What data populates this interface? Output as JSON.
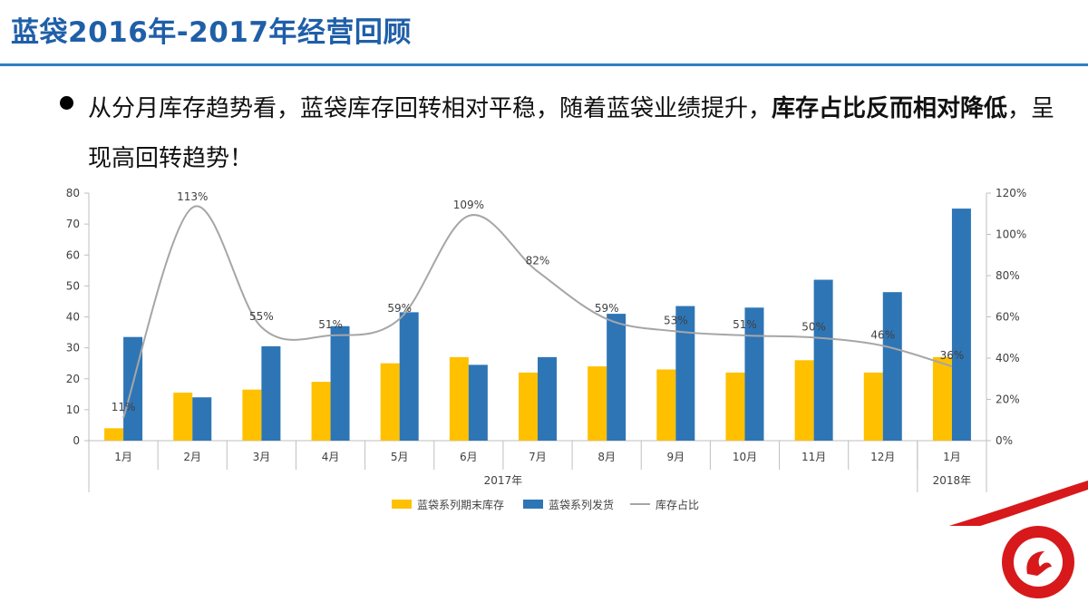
{
  "slide": {
    "title": "蓝袋2016年-2017年经营回顾",
    "bullet_part1": "从分月库存趋势看，蓝袋库存回转相对平稳，随着蓝袋业绩提升，",
    "bullet_bold1": "库存占比反而相对降低",
    "bullet_part2": "，呈现高回转趋势！",
    "title_color": "#1f5fa8",
    "rule_color": "#2f7fc4",
    "brand_red": "#d7191c"
  },
  "chart_data": {
    "type": "bar",
    "categories": [
      "1月",
      "2月",
      "3月",
      "4月",
      "5月",
      "6月",
      "7月",
      "8月",
      "9月",
      "10月",
      "11月",
      "12月",
      "1月"
    ],
    "groups": [
      {
        "label": "2017年",
        "span": 12
      },
      {
        "label": "2018年",
        "span": 1
      }
    ],
    "series": [
      {
        "name": "蓝袋系列期末库存",
        "type": "bar",
        "axis": "left",
        "color": "#ffc000",
        "values": [
          4,
          15.5,
          16.5,
          19,
          25,
          27,
          22,
          24,
          23,
          22,
          26,
          22,
          27
        ]
      },
      {
        "name": "蓝袋系列发货",
        "type": "bar",
        "axis": "left",
        "color": "#2e75b6",
        "values": [
          33.5,
          14,
          30.5,
          37,
          41.5,
          24.5,
          27,
          41,
          43.5,
          43,
          52,
          48,
          75
        ]
      },
      {
        "name": "库存占比",
        "type": "line",
        "axis": "right",
        "color": "#a6a6a6",
        "values": [
          11,
          113,
          55,
          51,
          59,
          109,
          82,
          59,
          53,
          51,
          50,
          46,
          36
        ],
        "labels": [
          "11%",
          "113%",
          "55%",
          "51%",
          "59%",
          "109%",
          "82%",
          "59%",
          "53%",
          "51%",
          "50%",
          "46%",
          "36%"
        ]
      }
    ],
    "y_left": {
      "min": 0,
      "max": 80,
      "ticks": [
        "0",
        "10",
        "20",
        "30",
        "40",
        "50",
        "60",
        "70",
        "80"
      ]
    },
    "y_right": {
      "min": 0,
      "max": 120,
      "ticks": [
        "0%",
        "20%",
        "40%",
        "60%",
        "80%",
        "100%",
        "120%"
      ]
    },
    "legend_position": "bottom",
    "grid": false
  }
}
